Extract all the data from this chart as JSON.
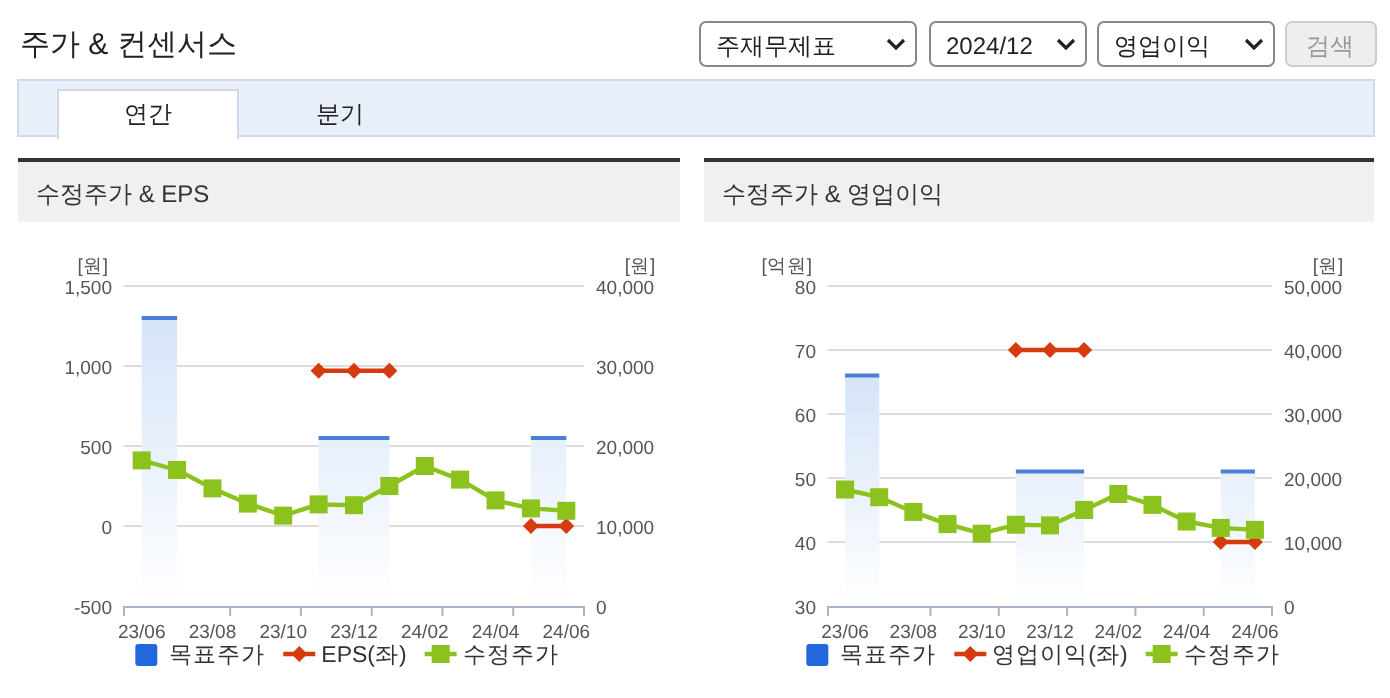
{
  "chart_data": [
    {
      "type": "other",
      "title": "주가 & 컨센서스",
      "annotations": [
        "주재무제표",
        "2024/12",
        "영업이익",
        "검색",
        "연간",
        "분기"
      ]
    },
    {
      "type": "line",
      "title": "수정주가 & EPS",
      "ylabel": "[원]",
      "y2label": "[원]",
      "categories": [
        "23/06",
        null,
        "23/08",
        null,
        "23/10",
        null,
        "23/12",
        null,
        "24/02",
        null,
        "24/04",
        null,
        "24/06"
      ],
      "series": [
        {
          "name": "목표주가",
          "type": "area",
          "axis": "y2",
          "color": "#4a7fd4",
          "values": [
            36000,
            36000,
            null,
            null,
            null,
            21000,
            21000,
            21000,
            null,
            null,
            null,
            21000,
            21000
          ]
        },
        {
          "name": "EPS(좌)",
          "color": "#d63a0f",
          "marker": "diamond",
          "values": [
            null,
            null,
            null,
            null,
            null,
            970,
            970,
            970,
            null,
            null,
            null,
            0,
            0
          ]
        },
        {
          "name": "수정주가",
          "axis": "y2",
          "color": "#8cc21d",
          "marker": "square",
          "values": [
            18200,
            17000,
            14700,
            12800,
            11300,
            12700,
            12600,
            15000,
            17500,
            15800,
            13200,
            12200,
            11900
          ]
        }
      ],
      "ylim": [
        -500,
        1500
      ],
      "yticks": [
        -500,
        0,
        500,
        {
          "value": 1000,
          "label": "1,000"
        },
        {
          "value": 1500,
          "label": "1,500"
        }
      ],
      "y2lim": [
        0,
        40000
      ],
      "y2ticks": [
        0,
        {
          "value": 10000,
          "label": "10,000"
        },
        {
          "value": 20000,
          "label": "20,000"
        },
        {
          "value": 30000,
          "label": "30,000"
        },
        {
          "value": 40000,
          "label": "40,000"
        }
      ],
      "grid": "y",
      "legend": "bottom"
    },
    {
      "type": "line",
      "title": "수정주가 & 영업이익",
      "ylabel": "[억원]",
      "y2label": "[원]",
      "categories": [
        "23/06",
        null,
        "23/08",
        null,
        "23/10",
        null,
        "23/12",
        null,
        "24/02",
        null,
        "24/04",
        null,
        "24/06"
      ],
      "series": [
        {
          "name": "목표주가",
          "type": "area",
          "axis": "y2",
          "color": "#4a7fd4",
          "values": [
            36000,
            36000,
            null,
            null,
            null,
            21000,
            21000,
            21000,
            null,
            null,
            null,
            21000,
            21000
          ]
        },
        {
          "name": "영업이익(좌)",
          "color": "#d63a0f",
          "marker": "diamond",
          "values": [
            null,
            null,
            null,
            null,
            null,
            70,
            70,
            70,
            null,
            null,
            null,
            40,
            40
          ]
        },
        {
          "name": "수정주가",
          "axis": "y2",
          "color": "#8cc21d",
          "marker": "square",
          "values": [
            18200,
            17000,
            14700,
            12800,
            11300,
            12700,
            12600,
            15000,
            17500,
            15800,
            13200,
            12200,
            11900
          ]
        }
      ],
      "ylim": [
        30,
        80
      ],
      "yticks": [
        30,
        40,
        50,
        60,
        70,
        80
      ],
      "y2lim": [
        0,
        50000
      ],
      "y2ticks": [
        0,
        {
          "value": 10000,
          "label": "10,000"
        },
        {
          "value": 20000,
          "label": "20,000"
        },
        {
          "value": 30000,
          "label": "30,000"
        },
        {
          "value": 40000,
          "label": "40,000"
        },
        {
          "value": 50000,
          "label": "50,000"
        }
      ],
      "grid": "y",
      "legend": "bottom"
    }
  ]
}
